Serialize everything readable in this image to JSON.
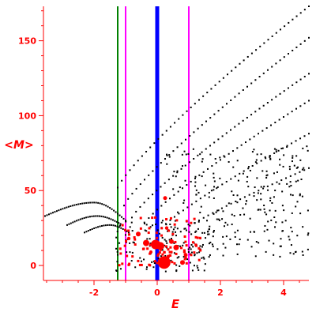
{
  "chart_data": {
    "type": "scatter",
    "title": "",
    "xlabel": "E",
    "ylabel": "<M>",
    "xlim": [
      -3.6,
      4.8
    ],
    "ylim": [
      -10,
      173
    ],
    "x_ticks": [
      -2,
      0,
      2,
      4
    ],
    "x_tick_labels": [
      "-2",
      "0",
      "2",
      "4"
    ],
    "y_ticks": [
      0,
      50,
      100,
      150
    ],
    "y_tick_labels": [
      "0",
      "50",
      "100",
      "150"
    ],
    "grid": false,
    "colors": {
      "axis": "#ff0000",
      "points": "#000000",
      "highlight": "#ff0000",
      "line_green": "#008000",
      "line_magenta": "#ff00ff",
      "line_blue": "#0000ff"
    },
    "vertical_lines": [
      {
        "x": -1.25,
        "color": "#008000",
        "width": 2
      },
      {
        "x": -1.0,
        "color": "#ff00ff",
        "width": 2
      },
      {
        "x": 0.0,
        "color": "#0000ff",
        "width": 5
      },
      {
        "x": 1.0,
        "color": "#ff00ff",
        "width": 2
      }
    ],
    "bands": [
      {
        "x_start": -1.25,
        "x_end": 4.8,
        "m_start": 52,
        "m_end": 173,
        "n": 48
      },
      {
        "x_start": -1.05,
        "x_end": 4.8,
        "m_start": 40,
        "m_end": 152,
        "n": 46
      },
      {
        "x_start": -0.8,
        "x_end": 4.8,
        "m_start": 32,
        "m_end": 128,
        "n": 44
      },
      {
        "x_start": -0.4,
        "x_end": 4.8,
        "m_start": 28,
        "m_end": 110,
        "n": 40
      },
      {
        "x_start": 0.0,
        "x_end": 4.8,
        "m_start": 22,
        "m_end": 88,
        "n": 36
      },
      {
        "x_start": 0.6,
        "x_end": 4.8,
        "m_start": 20,
        "m_end": 65,
        "n": 30
      }
    ],
    "arcs": [
      {
        "x_start": -3.55,
        "x_end": -1.0,
        "peak_x": -2.0,
        "m_start": 33,
        "m_peak": 42,
        "m_end": 30,
        "n": 42
      },
      {
        "x_start": -2.85,
        "x_end": -1.1,
        "peak_x": -1.9,
        "m_start": 27,
        "m_peak": 33,
        "m_end": 27,
        "n": 30
      },
      {
        "x_start": -2.3,
        "x_end": -0.9,
        "peak_x": -1.5,
        "m_start": 22,
        "m_peak": 27,
        "m_end": 22,
        "n": 24
      }
    ],
    "scatter_cloud": {
      "x_range": [
        0.3,
        4.8
      ],
      "m_range": [
        5,
        80
      ],
      "n": 260,
      "seed": 7
    },
    "low_cluster": {
      "x_range": [
        -1.3,
        1.8
      ],
      "m_range": [
        -4,
        30
      ],
      "n": 140,
      "seed": 11
    },
    "highlight_points": [
      {
        "x": 0.22,
        "y": 2,
        "size": 8
      },
      {
        "x": -0.05,
        "y": 14,
        "size": 6
      },
      {
        "x": 0.1,
        "y": 13,
        "size": 5
      },
      {
        "x": -0.35,
        "y": 15,
        "size": 4
      },
      {
        "x": 0.6,
        "y": 12,
        "size": 3.5
      },
      {
        "x": 0.8,
        "y": 2,
        "size": 3
      },
      {
        "x": 0.45,
        "y": 16,
        "size": 3
      },
      {
        "x": -0.6,
        "y": 21,
        "size": 3
      },
      {
        "x": 0.9,
        "y": 7,
        "size": 2.5
      },
      {
        "x": 0.25,
        "y": 45,
        "size": 2.5
      },
      {
        "x": 0.3,
        "y": 25,
        "size": 2.2
      },
      {
        "x": -0.9,
        "y": 18,
        "size": 2.2
      },
      {
        "x": 0.35,
        "y": 6,
        "size": 2.2
      },
      {
        "x": -0.2,
        "y": 9,
        "size": 2
      }
    ],
    "highlight_scatter": {
      "x_range": [
        -1.2,
        1.4
      ],
      "m_range": [
        0,
        32
      ],
      "n": 90,
      "seed": 23
    }
  }
}
